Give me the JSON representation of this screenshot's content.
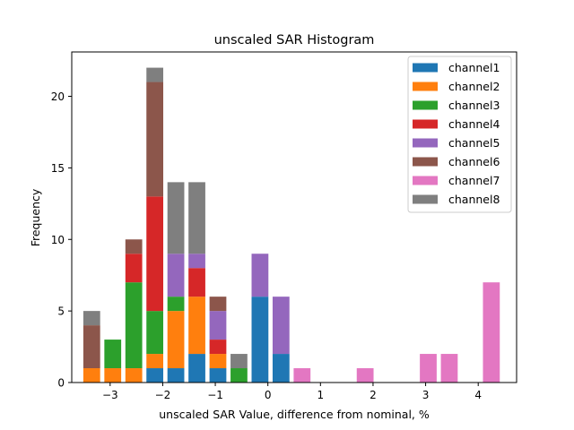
{
  "chart_data": {
    "type": "bar",
    "stacked": true,
    "title": "unscaled SAR Histogram",
    "xlabel": "unscaled SAR Value, difference from nominal, %",
    "ylabel": "Frequency",
    "xlim": [
      -3.73,
      4.73
    ],
    "ylim": [
      0,
      23.1
    ],
    "xticks": [
      -3,
      -2,
      -1,
      0,
      1,
      2,
      3,
      4
    ],
    "xtick_labels": [
      "−3",
      "−2",
      "−1",
      "0",
      "1",
      "2",
      "3",
      "4"
    ],
    "yticks": [
      0,
      5,
      10,
      15,
      20
    ],
    "ytick_labels": [
      "0",
      "5",
      "10",
      "15",
      "20"
    ],
    "bar_width": 0.32,
    "x": [
      -3.35,
      -2.95,
      -2.55,
      -2.15,
      -1.75,
      -1.35,
      -0.95,
      -0.55,
      -0.15,
      0.25,
      0.65,
      1.05,
      1.45,
      1.85,
      2.25,
      2.65,
      3.05,
      3.45,
      3.85,
      4.25
    ],
    "legend_position": "top-right",
    "series": [
      {
        "name": "channel1",
        "color": "#1f77b4",
        "values": [
          0,
          0,
          0,
          1,
          1,
          2,
          1,
          0,
          6,
          2,
          0,
          0,
          0,
          0,
          0,
          0,
          0,
          0,
          0,
          0
        ]
      },
      {
        "name": "channel2",
        "color": "#ff7f0e",
        "values": [
          1,
          1,
          1,
          1,
          4,
          4,
          1,
          0,
          0,
          0,
          0,
          0,
          0,
          0,
          0,
          0,
          0,
          0,
          0,
          0
        ]
      },
      {
        "name": "channel3",
        "color": "#2ca02c",
        "values": [
          0,
          2,
          6,
          3,
          1,
          0,
          0,
          1,
          0,
          0,
          0,
          0,
          0,
          0,
          0,
          0,
          0,
          0,
          0,
          0
        ]
      },
      {
        "name": "channel4",
        "color": "#d62728",
        "values": [
          0,
          0,
          2,
          8,
          0,
          2,
          1,
          0,
          0,
          0,
          0,
          0,
          0,
          0,
          0,
          0,
          0,
          0,
          0,
          0
        ]
      },
      {
        "name": "channel5",
        "color": "#9467bd",
        "values": [
          0,
          0,
          0,
          0,
          3,
          1,
          2,
          0,
          3,
          4,
          0,
          0,
          0,
          0,
          0,
          0,
          0,
          0,
          0,
          0
        ]
      },
      {
        "name": "channel6",
        "color": "#8c564b",
        "values": [
          3,
          0,
          1,
          8,
          0,
          0,
          1,
          0,
          0,
          0,
          0,
          0,
          0,
          0,
          0,
          0,
          0,
          0,
          0,
          0
        ]
      },
      {
        "name": "channel7",
        "color": "#e377c2",
        "values": [
          0,
          0,
          0,
          0,
          0,
          0,
          0,
          0,
          0,
          0,
          1,
          0,
          0,
          1,
          0,
          0,
          2,
          2,
          0,
          7
        ]
      },
      {
        "name": "channel8",
        "color": "#7f7f7f",
        "values": [
          1,
          0,
          0,
          1,
          5,
          5,
          0,
          1,
          0,
          0,
          0,
          0,
          0,
          0,
          0,
          0,
          0,
          0,
          0,
          0
        ]
      }
    ]
  }
}
